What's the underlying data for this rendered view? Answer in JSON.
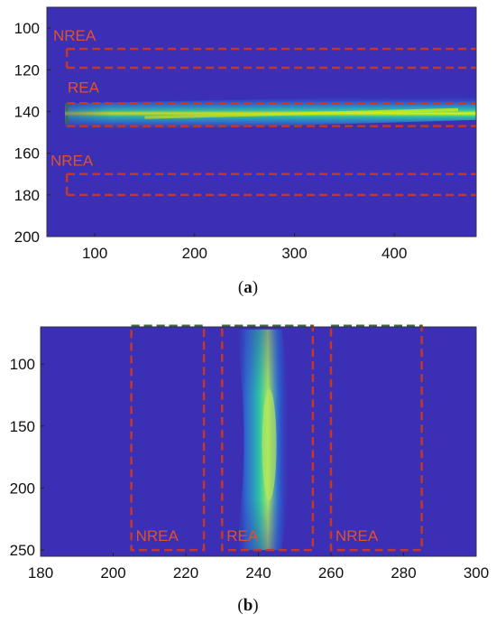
{
  "figure": {
    "panel_a_caption_letter": "a",
    "panel_b_caption_letter": "b"
  },
  "colors": {
    "background": "#3a2fb5",
    "beam_core": "#e6f500",
    "beam_mid": "#2fc7a0",
    "beam_edge": "#2a7fd8",
    "box": "#c0392b",
    "box_dark": "#3d6b3d",
    "label": "#e0522a"
  },
  "chart_data": [
    {
      "type": "heatmap",
      "panel": "a",
      "xlim": [
        52,
        482
      ],
      "ylim": [
        90,
        200
      ],
      "y_reversed": true,
      "xticks": [
        100,
        200,
        300,
        400
      ],
      "yticks": [
        100,
        120,
        140,
        160,
        180,
        200
      ],
      "xtick_labels": [
        "100",
        "200",
        "300",
        "400"
      ],
      "ytick_labels": [
        "100",
        "120",
        "140",
        "160",
        "180",
        "200"
      ],
      "beam": {
        "orientation": "horizontal",
        "center_start": [
          70,
          143
        ],
        "center_end": [
          482,
          138
        ],
        "peak_region_x": [
          150,
          460
        ]
      },
      "regions": [
        {
          "label": "NREA",
          "x": [
            72,
            482
          ],
          "y": [
            110,
            119
          ]
        },
        {
          "label": "REA",
          "x": [
            72,
            482
          ],
          "y": [
            136,
            147
          ]
        },
        {
          "label": "NREA",
          "x": [
            72,
            482
          ],
          "y": [
            170,
            180
          ]
        }
      ],
      "region_labels": [
        "NREA",
        "REA",
        "NREA"
      ]
    },
    {
      "type": "heatmap",
      "panel": "b",
      "xlim": [
        180,
        300
      ],
      "ylim": [
        70,
        255
      ],
      "y_reversed": true,
      "xticks": [
        180,
        200,
        220,
        240,
        260,
        280,
        300
      ],
      "yticks": [
        100,
        150,
        200,
        250
      ],
      "xtick_labels": [
        "180",
        "200",
        "220",
        "240",
        "260",
        "280",
        "300"
      ],
      "ytick_labels": [
        "100",
        "150",
        "200",
        "250"
      ],
      "beam": {
        "orientation": "vertical",
        "center_x": 241,
        "y_range": [
          72,
          250
        ],
        "peak_region_y": [
          120,
          210
        ]
      },
      "regions": [
        {
          "label": "NREA",
          "x": [
            205,
            225
          ],
          "y": [
            72,
            250
          ]
        },
        {
          "label": "REA",
          "x": [
            230,
            255
          ],
          "y": [
            72,
            250
          ]
        },
        {
          "label": "NREA",
          "x": [
            260,
            285
          ],
          "y": [
            72,
            250
          ]
        }
      ],
      "region_labels": [
        "NREA",
        "REA",
        "NREA"
      ]
    }
  ]
}
